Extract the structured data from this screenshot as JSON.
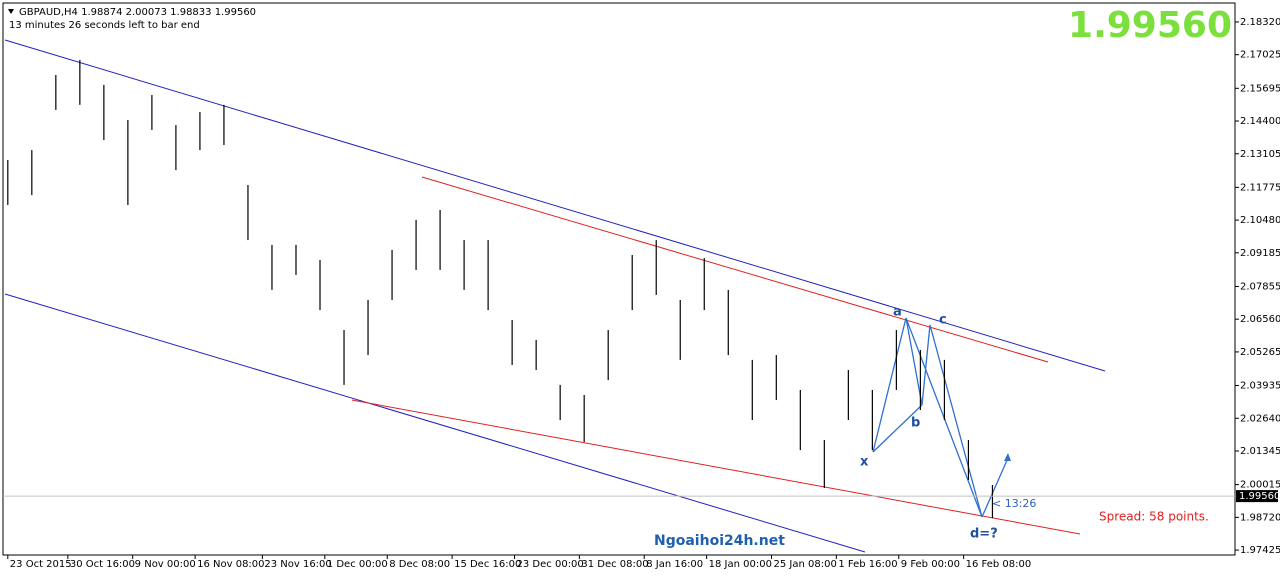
{
  "chart_data": {
    "type": "ohlc",
    "header": "GBPAUD,H4  1.98874 2.00073 1.98833 1.99560",
    "countdown": "13 minutes 26 seconds left to bar end",
    "last_price": {
      "value": 1.9956,
      "label": "1.99560"
    },
    "timer": "< 13:26",
    "spread": "Spread: 58 points.",
    "watermark": "Ngoaihoi24h.net",
    "wave_labels": [
      "x",
      "a",
      "b",
      "c",
      "d=?"
    ],
    "color": "#000000",
    "highs": [
      2.1286,
      2.1325,
      2.1622,
      2.1682,
      2.1583,
      2.1444,
      2.1543,
      2.1424,
      2.1476,
      2.1504,
      2.1187,
      2.095,
      2.095,
      2.089,
      2.0613,
      2.0732,
      2.093,
      2.1049,
      2.1088,
      2.0969,
      2.0969,
      2.0653,
      2.0574,
      2.0396,
      2.0356,
      2.0613,
      2.091,
      2.0969,
      2.0732,
      2.0898,
      2.0772,
      2.0495,
      2.0514,
      2.0376,
      2.0178,
      2.0455,
      2.0376,
      2.0613,
      2.0534,
      2.0495,
      2.0178,
      2.0
    ],
    "lows": [
      2.1108,
      2.1147,
      2.1484,
      2.1504,
      2.1365,
      2.1108,
      2.1405,
      2.1246,
      2.1325,
      2.1345,
      2.0969,
      2.0772,
      2.0831,
      2.0692,
      2.0396,
      2.0514,
      2.0732,
      2.0851,
      2.0851,
      2.0772,
      2.0692,
      2.0475,
      2.0455,
      2.0257,
      2.017,
      2.0415,
      2.0692,
      2.0752,
      2.0495,
      2.0692,
      2.0514,
      2.0257,
      2.0336,
      2.0138,
      1.9988,
      2.0257,
      2.0138,
      2.0376,
      2.0297,
      2.0257,
      2.002,
      1.9869
    ],
    "xlim": [
      -0.2,
      51.1
    ],
    "xticks": [
      {
        "value": 0,
        "label": "23 Oct 2015"
      },
      {
        "value": 2.5,
        "label": "30 Oct 16:00"
      },
      {
        "value": 5.2,
        "label": "9 Nov 00:00"
      },
      {
        "value": 7.8,
        "label": "16 Nov 08:00"
      },
      {
        "value": 10.6,
        "label": "23 Nov 16:00"
      },
      {
        "value": 13.2,
        "label": "1 Dec 00:00"
      },
      {
        "value": 15.8,
        "label": "8 Dec 08:00"
      },
      {
        "value": 18.5,
        "label": "15 Dec 16:00"
      },
      {
        "value": 21.1,
        "label": "23 Dec 00:00"
      },
      {
        "value": 23.8,
        "label": "31 Dec 08:00"
      },
      {
        "value": 26.5,
        "label": "8 Jan 16:00"
      },
      {
        "value": 29.1,
        "label": "18 Jan 00:00"
      },
      {
        "value": 31.8,
        "label": "25 Jan 08:00"
      },
      {
        "value": 34.5,
        "label": "1 Feb 16:00"
      },
      {
        "value": 37.1,
        "label": "9 Feb 00:00"
      },
      {
        "value": 39.8,
        "label": "16 Feb 08:00"
      }
    ],
    "ylim": [
      1.9723,
      2.1907
    ],
    "yticks": [
      {
        "value": 2.1832,
        "label": "2.18320"
      },
      {
        "value": 2.17025,
        "label": "2.17025"
      },
      {
        "value": 2.15695,
        "label": "2.15695"
      },
      {
        "value": 2.144,
        "label": "2.14400"
      },
      {
        "value": 2.13105,
        "label": "2.13105"
      },
      {
        "value": 2.11775,
        "label": "2.11775"
      },
      {
        "value": 2.1048,
        "label": "2.10480"
      },
      {
        "value": 2.09185,
        "label": "2.09185"
      },
      {
        "value": 2.07855,
        "label": "2.07855"
      },
      {
        "value": 2.0656,
        "label": "2.06560"
      },
      {
        "value": 2.05265,
        "label": "2.05265"
      },
      {
        "value": 2.03935,
        "label": "2.03935"
      },
      {
        "value": 2.0264,
        "label": "2.02640"
      },
      {
        "value": 2.01345,
        "label": "2.01345"
      },
      {
        "value": 2.00015,
        "label": "2.00015"
      },
      {
        "value": 1.9872,
        "label": "1.98720"
      },
      {
        "value": 1.97425,
        "label": "1.97425"
      }
    ]
  }
}
